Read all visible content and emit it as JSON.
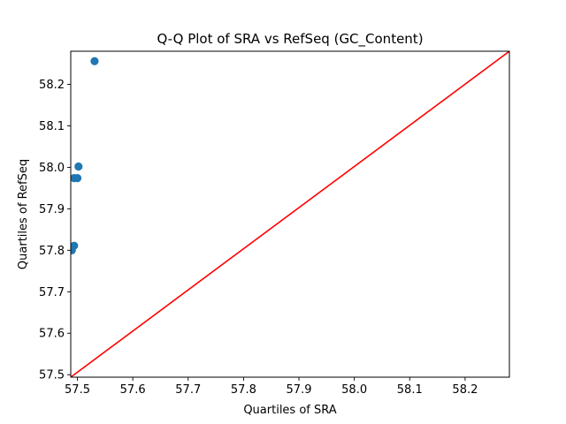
{
  "chart_data": {
    "type": "scatter",
    "title": "Q-Q Plot of SRA vs RefSeq (GC_Content)",
    "xlabel": "Quartiles of SRA",
    "ylabel": "Quartiles of RefSeq",
    "xlim": [
      57.488,
      58.28
    ],
    "ylim": [
      57.494,
      58.28
    ],
    "xticks": [
      "57.5",
      "57.6",
      "57.7",
      "57.8",
      "57.9",
      "58.0",
      "58.1",
      "58.2"
    ],
    "yticks": [
      "57.5",
      "57.6",
      "57.7",
      "57.8",
      "57.9",
      "58.0",
      "58.1",
      "58.2"
    ],
    "grid": false,
    "points": [
      {
        "x": 57.49,
        "y": 57.8
      },
      {
        "x": 57.494,
        "y": 57.811
      },
      {
        "x": 57.494,
        "y": 57.974
      },
      {
        "x": 57.5,
        "y": 57.974
      },
      {
        "x": 57.502,
        "y": 58.002
      },
      {
        "x": 57.531,
        "y": 58.256
      }
    ],
    "reference_line": {
      "from": [
        57.488,
        57.494
      ],
      "to": [
        58.28,
        58.28
      ]
    },
    "point_color": "#1f77b4",
    "line_color": "#ff0000"
  }
}
